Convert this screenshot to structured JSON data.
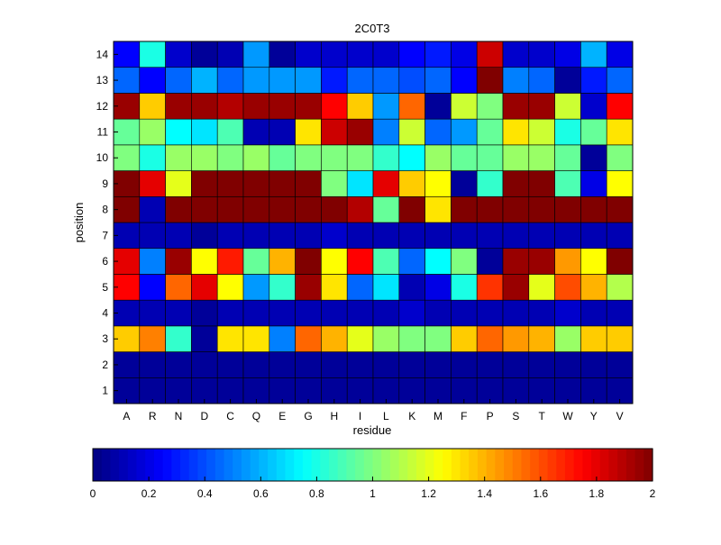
{
  "chart_data": {
    "type": "heatmap",
    "title": "2C0T3",
    "xlabel": "residue",
    "ylabel": "position",
    "x": [
      "A",
      "R",
      "N",
      "D",
      "C",
      "Q",
      "E",
      "G",
      "H",
      "I",
      "L",
      "K",
      "M",
      "F",
      "P",
      "S",
      "T",
      "W",
      "Y",
      "V"
    ],
    "y": [
      "1",
      "2",
      "3",
      "4",
      "5",
      "6",
      "7",
      "8",
      "9",
      "10",
      "11",
      "12",
      "13",
      "14"
    ],
    "values": [
      [
        0.05,
        0.05,
        0.05,
        0.05,
        0.05,
        0.05,
        0.05,
        0.05,
        0.05,
        0.05,
        0.05,
        0.05,
        0.05,
        0.05,
        0.05,
        0.05,
        0.05,
        0.05,
        0.05,
        0.05
      ],
      [
        0.05,
        0.05,
        0.05,
        0.05,
        0.05,
        0.05,
        0.05,
        0.05,
        0.05,
        0.05,
        0.05,
        0.05,
        0.05,
        0.05,
        0.05,
        0.05,
        0.05,
        0.05,
        0.05,
        0.05
      ],
      [
        1.35,
        1.5,
        0.85,
        0.05,
        1.3,
        1.3,
        0.5,
        1.55,
        1.4,
        1.2,
        1.05,
        1.0,
        1.0,
        1.35,
        1.55,
        1.45,
        1.4,
        1.05,
        1.35,
        1.35
      ],
      [
        0.1,
        0.1,
        0.1,
        0.05,
        0.1,
        0.1,
        0.1,
        0.1,
        0.1,
        0.1,
        0.1,
        0.15,
        0.1,
        0.1,
        0.1,
        0.1,
        0.1,
        0.15,
        0.1,
        0.1
      ],
      [
        1.75,
        0.25,
        1.55,
        1.8,
        1.25,
        0.55,
        0.85,
        1.95,
        1.3,
        0.45,
        0.7,
        0.1,
        0.2,
        0.8,
        1.65,
        1.95,
        1.2,
        1.6,
        1.4,
        1.1
      ],
      [
        1.8,
        0.5,
        1.95,
        1.25,
        1.7,
        0.95,
        1.4,
        2.0,
        1.25,
        1.75,
        0.9,
        0.45,
        0.75,
        1.0,
        0.05,
        1.95,
        1.95,
        1.45,
        1.25,
        2.0
      ],
      [
        0.1,
        0.1,
        0.1,
        0.05,
        0.1,
        0.1,
        0.1,
        0.1,
        0.15,
        0.1,
        0.1,
        0.1,
        0.1,
        0.1,
        0.1,
        0.1,
        0.1,
        0.1,
        0.1,
        0.1
      ],
      [
        2.0,
        0.1,
        2.0,
        2.0,
        2.0,
        2.0,
        2.0,
        2.0,
        2.0,
        1.9,
        0.95,
        2.0,
        1.3,
        2.0,
        2.0,
        2.0,
        2.0,
        2.0,
        2.0,
        2.0
      ],
      [
        2.0,
        1.8,
        1.2,
        2.0,
        2.0,
        2.0,
        2.0,
        2.0,
        1.0,
        0.7,
        1.8,
        1.35,
        1.25,
        0.05,
        0.85,
        2.0,
        2.0,
        0.9,
        0.2,
        1.25
      ],
      [
        1.0,
        0.8,
        1.05,
        1.05,
        1.0,
        1.05,
        0.95,
        1.0,
        1.0,
        1.0,
        0.85,
        0.75,
        1.05,
        0.95,
        0.95,
        1.05,
        1.05,
        0.95,
        0.05,
        1.0
      ],
      [
        0.95,
        1.05,
        0.75,
        0.7,
        0.9,
        0.1,
        0.1,
        1.3,
        1.85,
        1.95,
        0.5,
        1.15,
        0.45,
        0.55,
        0.95,
        1.3,
        1.15,
        0.8,
        0.95,
        1.3
      ],
      [
        1.95,
        1.35,
        1.95,
        1.95,
        1.9,
        1.95,
        1.95,
        1.95,
        1.75,
        1.35,
        0.55,
        1.55,
        0.05,
        1.15,
        1.0,
        1.95,
        1.95,
        1.15,
        0.15,
        1.75
      ],
      [
        0.45,
        0.25,
        0.45,
        0.6,
        0.45,
        0.55,
        0.55,
        0.55,
        0.3,
        0.45,
        0.45,
        0.4,
        0.45,
        0.25,
        2.0,
        0.5,
        0.45,
        0.05,
        0.3,
        0.45
      ],
      [
        0.25,
        0.8,
        0.15,
        0.05,
        0.1,
        0.55,
        0.05,
        0.15,
        0.15,
        0.15,
        0.15,
        0.25,
        0.3,
        0.2,
        1.85,
        0.15,
        0.15,
        0.2,
        0.6,
        0.2
      ]
    ],
    "colorbar": {
      "ticks": [
        0,
        0.2,
        0.4,
        0.6,
        0.8,
        1,
        1.2,
        1.4,
        1.6,
        1.8,
        2
      ],
      "tick_labels": [
        "0",
        "0.2",
        "0.4",
        "0.6",
        "0.8",
        "1",
        "1.2",
        "1.4",
        "1.6",
        "1.8",
        "2"
      ],
      "range": [
        0,
        2
      ],
      "placement": "bottom",
      "orientation": "horizontal"
    },
    "colormap": "jet",
    "grid": false
  }
}
